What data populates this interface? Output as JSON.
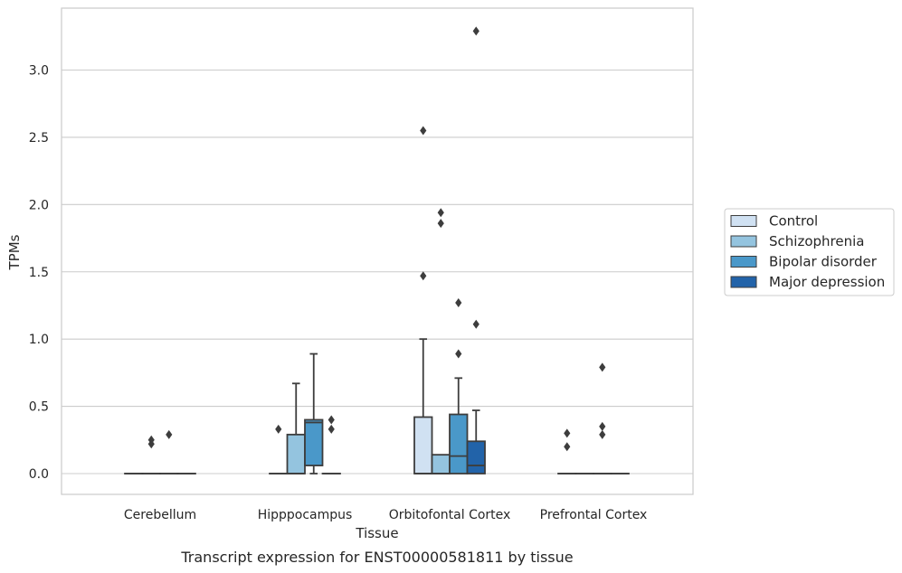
{
  "chart_data": {
    "type": "box",
    "title": "",
    "caption": "Transcript expression for ENST00000581811 by tissue",
    "xlabel": "Tissue",
    "ylabel": "TPMs",
    "ylim": [
      -0.16,
      3.45
    ],
    "yticks": [
      "0.0",
      "0.5",
      "1.0",
      "1.5",
      "2.0",
      "2.5",
      "3.0"
    ],
    "grid": "horizontal",
    "legend_position": "right",
    "categories": [
      "Cerebellum",
      "Hipppocampus",
      "Orbitofontal Cortex",
      "Prefrontal Cortex"
    ],
    "series": [
      {
        "name": "Control",
        "color": "#d0e1f2",
        "boxes": [
          {
            "q1": 0,
            "median": 0,
            "q3": 0,
            "whisker_low": 0,
            "whisker_high": 0,
            "outliers": []
          },
          {
            "q1": 0,
            "median": 0,
            "q3": 0,
            "whisker_low": 0,
            "whisker_high": 0,
            "outliers": [
              0.33
            ]
          },
          {
            "q1": 0,
            "median": 0,
            "q3": 0.42,
            "whisker_low": 0,
            "whisker_high": 1.0,
            "outliers": [
              1.47,
              2.55
            ]
          },
          {
            "q1": 0,
            "median": 0,
            "q3": 0,
            "whisker_low": 0,
            "whisker_high": 0,
            "outliers": [
              0.2,
              0.3
            ]
          }
        ]
      },
      {
        "name": "Schizophrenia",
        "color": "#94c4df",
        "boxes": [
          {
            "q1": 0,
            "median": 0,
            "q3": 0,
            "whisker_low": 0,
            "whisker_high": 0,
            "outliers": [
              0.22,
              0.25
            ]
          },
          {
            "q1": 0,
            "median": 0,
            "q3": 0.29,
            "whisker_low": 0,
            "whisker_high": 0.67,
            "outliers": []
          },
          {
            "q1": 0,
            "median": 0,
            "q3": 0.14,
            "whisker_low": 0,
            "whisker_high": 0.14,
            "outliers": [
              1.86,
              1.94
            ]
          },
          {
            "q1": 0,
            "median": 0,
            "q3": 0,
            "whisker_low": 0,
            "whisker_high": 0,
            "outliers": []
          }
        ]
      },
      {
        "name": "Bipolar disorder",
        "color": "#4a98c9",
        "boxes": [
          {
            "q1": 0,
            "median": 0,
            "q3": 0,
            "whisker_low": 0,
            "whisker_high": 0,
            "outliers": [
              0.29
            ]
          },
          {
            "q1": 0.06,
            "median": 0.38,
            "q3": 0.4,
            "whisker_low": 0,
            "whisker_high": 0.89,
            "outliers": []
          },
          {
            "q1": 0,
            "median": 0.13,
            "q3": 0.44,
            "whisker_low": 0,
            "whisker_high": 0.71,
            "outliers": [
              0.89,
              1.27
            ]
          },
          {
            "q1": 0,
            "median": 0,
            "q3": 0,
            "whisker_low": 0,
            "whisker_high": 0,
            "outliers": [
              0.29,
              0.35,
              0.79
            ]
          }
        ]
      },
      {
        "name": "Major depression",
        "color": "#2263a9",
        "boxes": [
          {
            "q1": 0,
            "median": 0,
            "q3": 0,
            "whisker_low": 0,
            "whisker_high": 0,
            "outliers": []
          },
          {
            "q1": 0,
            "median": 0,
            "q3": 0,
            "whisker_low": 0,
            "whisker_high": 0,
            "outliers": [
              0.33,
              0.4
            ]
          },
          {
            "q1": 0,
            "median": 0.06,
            "q3": 0.24,
            "whisker_low": 0,
            "whisker_high": 0.47,
            "outliers": [
              1.11,
              3.29
            ]
          },
          {
            "q1": 0,
            "median": 0,
            "q3": 0,
            "whisker_low": 0,
            "whisker_high": 0,
            "outliers": []
          }
        ]
      }
    ]
  }
}
